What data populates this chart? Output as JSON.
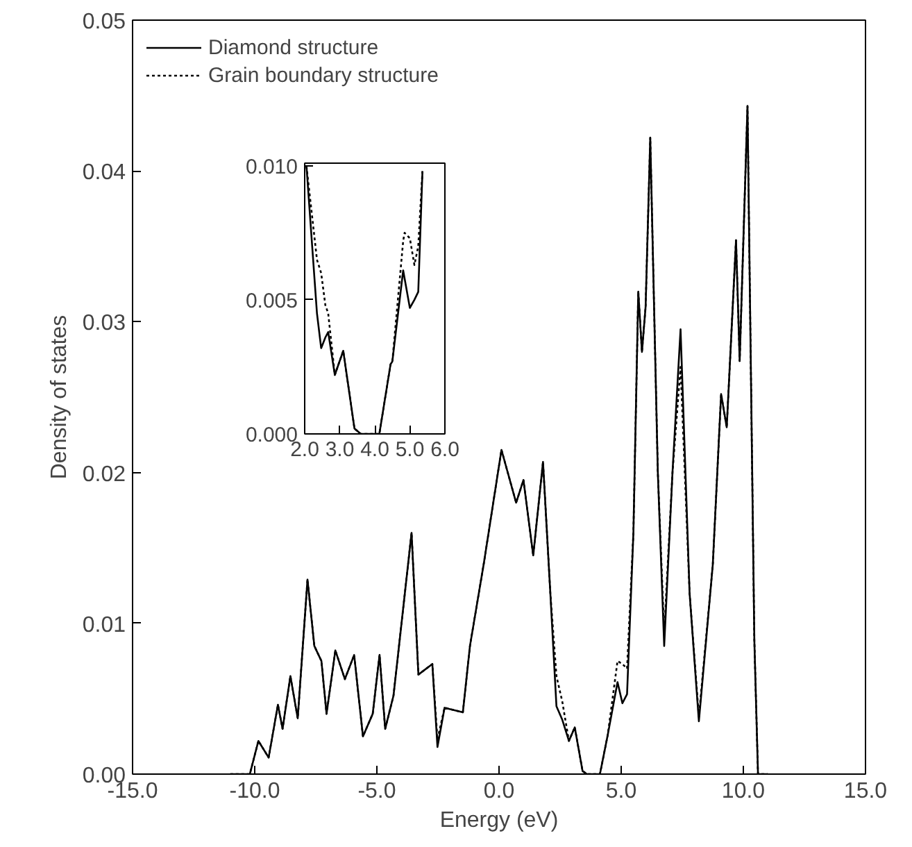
{
  "chart_data": [
    {
      "type": "line",
      "xlabel": "Energy (eV)",
      "ylabel": "Density of states",
      "xlim": [
        -15,
        15
      ],
      "ylim": [
        0,
        0.05
      ],
      "xticks": [
        {
          "value": -15,
          "label": "-15.0"
        },
        {
          "value": -10,
          "label": "-10.0"
        },
        {
          "value": -5,
          "label": "-5.0"
        },
        {
          "value": 0,
          "label": "0.0"
        },
        {
          "value": 5,
          "label": "5.0"
        },
        {
          "value": 10,
          "label": "10.0"
        },
        {
          "value": 15,
          "label": "15.0"
        }
      ],
      "yticks": [
        {
          "value": 0,
          "label": "0.00"
        },
        {
          "value": 0.01,
          "label": "0.01"
        },
        {
          "value": 0.02,
          "label": "0.02"
        },
        {
          "value": 0.03,
          "label": "0.03"
        },
        {
          "value": 0.04,
          "label": "0.04"
        },
        {
          "value": 0.05,
          "label": "0.05"
        }
      ],
      "grid": false,
      "legend": "top left",
      "x": [
        -11,
        -10.2,
        -9.85,
        -9.43,
        -9.05,
        -8.86,
        -8.54,
        -8.24,
        -7.84,
        -7.56,
        -7.27,
        -7.06,
        -6.7,
        -6.31,
        -5.93,
        -5.57,
        -5.17,
        -4.89,
        -4.66,
        -4.32,
        -3.58,
        -3.3,
        -2.73,
        -2.52,
        -2.23,
        -1.48,
        -1.19,
        -0.62,
        0.1,
        0.7,
        1.0,
        1.4,
        1.8,
        2.1,
        2.35,
        2.59,
        2.86,
        3.1,
        3.42,
        3.6,
        4.13,
        4.45,
        4.85,
        5.05,
        5.24,
        5.5,
        5.7,
        5.85,
        6.0,
        6.19,
        6.5,
        6.76,
        7.1,
        7.43,
        7.8,
        8.18,
        8.75,
        9.09,
        9.32,
        9.7,
        9.85,
        10.17,
        10.45,
        10.6,
        11
      ],
      "series": [
        {
          "name": "Diamond structure",
          "color": "#000000",
          "line_style": "solid",
          "values": [
            0,
            0,
            0.0022,
            0.0011,
            0.0046,
            0.003,
            0.0065,
            0.0037,
            0.0129,
            0.0085,
            0.0075,
            0.004,
            0.0082,
            0.0063,
            0.0079,
            0.0025,
            0.004,
            0.0079,
            0.003,
            0.0052,
            0.016,
            0.0066,
            0.0073,
            0.0018,
            0.0044,
            0.0041,
            0.0085,
            0.014,
            0.0215,
            0.018,
            0.0195,
            0.0145,
            0.0207,
            0.012,
            0.0045,
            0.0036,
            0.0022,
            0.0031,
            0.0002,
            0,
            0,
            0.0026,
            0.0061,
            0.0047,
            0.0053,
            0.016,
            0.032,
            0.028,
            0.031,
            0.0422,
            0.02,
            0.0085,
            0.02,
            0.0295,
            0.012,
            0.0035,
            0.0139,
            0.0252,
            0.023,
            0.0354,
            0.0274,
            0.0443,
            0.0089,
            0,
            0
          ]
        },
        {
          "name": "Grain boundary structure",
          "color": "#000000",
          "line_style": "dotted",
          "values": [
            0,
            0,
            0.0022,
            0.0011,
            0.0046,
            0.003,
            0.0065,
            0.0037,
            0.0129,
            0.0085,
            0.0075,
            0.004,
            0.0082,
            0.0063,
            0.0079,
            0.0025,
            0.004,
            0.0079,
            0.003,
            0.0052,
            0.016,
            0.0066,
            0.0073,
            0.0023,
            0.0044,
            0.0041,
            0.0085,
            0.014,
            0.0215,
            0.018,
            0.0195,
            0.0145,
            0.0207,
            0.012,
            0.0065,
            0.0048,
            0.0022,
            0.0031,
            0.0002,
            0,
            0,
            0.0026,
            0.0075,
            0.0073,
            0.007,
            0.016,
            0.032,
            0.028,
            0.031,
            0.0422,
            0.02,
            0.0094,
            0.02,
            0.027,
            0.012,
            0.0038,
            0.0139,
            0.0252,
            0.023,
            0.0354,
            0.0274,
            0.0443,
            0.0089,
            0,
            0
          ]
        }
      ]
    },
    {
      "type": "line",
      "xlim": [
        2,
        6
      ],
      "ylim": [
        0,
        0.0101
      ],
      "xticks": [
        {
          "value": 2,
          "label": "2.0"
        },
        {
          "value": 3,
          "label": "3.0"
        },
        {
          "value": 4,
          "label": "4.0"
        },
        {
          "value": 5,
          "label": "5.0"
        },
        {
          "value": 6,
          "label": "6.0"
        }
      ],
      "yticks": [
        {
          "value": 0,
          "label": "0.000"
        },
        {
          "value": 0.005,
          "label": "0.005"
        },
        {
          "value": 0.01,
          "label": "0.010"
        }
      ],
      "grid": false,
      "x": [
        2.05,
        2.35,
        2.47,
        2.59,
        2.67,
        2.86,
        3.1,
        3.42,
        3.6,
        4.13,
        4.45,
        4.5,
        4.81,
        4.85,
        5.0,
        5.13,
        5.24,
        5.36
      ],
      "series": [
        {
          "color": "#000000",
          "line_style": "solid",
          "values": [
            0.01,
            0.0045,
            0.0032,
            0.0036,
            0.0038,
            0.0022,
            0.0031,
            0.0002,
            0,
            0,
            0.0026,
            0.0027,
            0.0061,
            0.0058,
            0.0047,
            0.005,
            0.0053,
            0.0098
          ]
        },
        {
          "color": "#000000",
          "line_style": "dotted",
          "values": [
            0.01,
            0.0065,
            0.006,
            0.0048,
            0.0045,
            0.0022,
            0.0031,
            0.0002,
            0,
            0,
            0.0026,
            0.0027,
            0.0072,
            0.0075,
            0.0073,
            0.0063,
            0.007,
            0.0098
          ]
        }
      ]
    }
  ]
}
